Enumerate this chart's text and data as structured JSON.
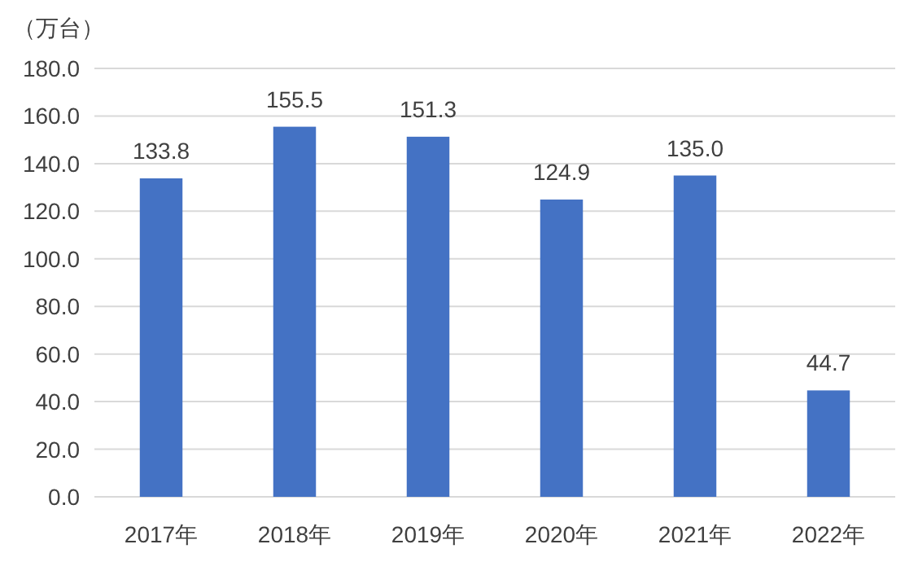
{
  "chart_data": {
    "type": "bar",
    "ylabel": "（万台）",
    "categories": [
      "2017年",
      "2018年",
      "2019年",
      "2020年",
      "2021年",
      "2022年"
    ],
    "values": [
      133.8,
      155.5,
      151.3,
      124.9,
      135.0,
      44.7
    ],
    "value_labels": [
      "133.8",
      "155.5",
      "151.3",
      "124.9",
      "135.0",
      "44.7"
    ],
    "color": "#4472c4",
    "ylim": [
      0,
      180
    ],
    "yticks": [
      {
        "value": 0,
        "label": "0.0"
      },
      {
        "value": 20,
        "label": "20.0"
      },
      {
        "value": 40,
        "label": "40.0"
      },
      {
        "value": 60,
        "label": "60.0"
      },
      {
        "value": 80,
        "label": "80.0"
      },
      {
        "value": 100,
        "label": "100.0"
      },
      {
        "value": 120,
        "label": "120.0"
      },
      {
        "value": 140,
        "label": "140.0"
      },
      {
        "value": 160,
        "label": "160.0"
      },
      {
        "value": 180,
        "label": "180.0"
      }
    ],
    "grid": "y"
  }
}
